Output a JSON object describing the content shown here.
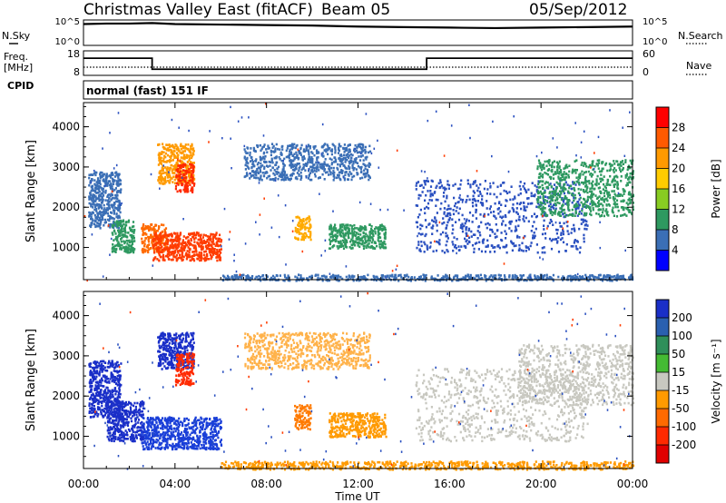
{
  "header": {
    "title": "Christmas Valley East (fitACF)",
    "beam": "Beam 05",
    "date": "05/Sep/2012"
  },
  "left_labels": {
    "nsky": "N.Sky",
    "freq_line1": "Freq.",
    "freq_line2": "[MHz]",
    "cpid": "CPID"
  },
  "right_labels": {
    "nsearch": "N.Search",
    "nave": "Nave"
  },
  "cpid_text": "normal (fast) 151 IF",
  "chart_data": [
    {
      "type": "line",
      "name": "noise-panel",
      "left_ticks": [
        "10^5",
        "10^0"
      ],
      "right_ticks": [
        "10^5",
        "10^0"
      ],
      "series": [
        {
          "name": "N.Sky",
          "x": [
            0,
            1,
            2,
            3,
            4,
            6,
            8,
            10,
            12,
            14,
            16,
            18,
            20,
            22,
            24
          ],
          "values": [
            4.2,
            4.3,
            4.3,
            4.4,
            4.2,
            4.1,
            4.0,
            3.9,
            3.7,
            3.6,
            3.5,
            3.4,
            3.5,
            3.6,
            3.7
          ]
        }
      ]
    },
    {
      "type": "line",
      "name": "frequency-panel",
      "left_ticks": [
        "18",
        "8"
      ],
      "right_ticks": [
        "60",
        "0"
      ],
      "series": [
        {
          "name": "Freq",
          "x": [
            0,
            3,
            3,
            15,
            15,
            24
          ],
          "values": [
            15,
            15,
            10.5,
            10.5,
            15,
            15
          ]
        },
        {
          "name": "Nave",
          "x": [
            0,
            24
          ],
          "values": [
            20,
            20
          ]
        }
      ]
    },
    {
      "type": "heatmap",
      "name": "power-panel",
      "ylabel": "Slant Range [km]",
      "x_ticks": [
        "00:00",
        "04:00",
        "08:00",
        "12:00",
        "16:00",
        "20:00",
        "00:00"
      ],
      "y_ticks": [
        "1000",
        "2000",
        "3000",
        "4000"
      ],
      "xlim": [
        0,
        24
      ],
      "ylim": [
        200,
        4600
      ],
      "colorbar": {
        "label": "Power [dB]",
        "ticks": [
          "28",
          "24",
          "20",
          "16",
          "12",
          "8",
          "4"
        ],
        "colors": [
          "#ff0000",
          "#ff5a00",
          "#ff9a00",
          "#ffcc00",
          "#88cc22",
          "#2e9960",
          "#3b6fb6",
          "#0000ff"
        ]
      },
      "echo_regions": [
        {
          "x": [
            0.2,
            1.6
          ],
          "y": [
            1500,
            2900
          ],
          "color": "#3b6fb6"
        },
        {
          "x": [
            1.2,
            2.2
          ],
          "y": [
            900,
            1700
          ],
          "color": "#2e9960"
        },
        {
          "x": [
            2.5,
            3.6
          ],
          "y": [
            900,
            1600
          ],
          "color": "#ff6a00"
        },
        {
          "x": [
            3.0,
            6.0
          ],
          "y": [
            700,
            1400
          ],
          "color": "#ff3c00"
        },
        {
          "x": [
            3.2,
            4.8
          ],
          "y": [
            2600,
            3600
          ],
          "color": "#ff9a00"
        },
        {
          "x": [
            4.0,
            4.8
          ],
          "y": [
            2400,
            3100
          ],
          "color": "#ff2a00"
        },
        {
          "x": [
            7.0,
            12.5
          ],
          "y": [
            2700,
            3600
          ],
          "color": "#3b6fb6"
        },
        {
          "x": [
            9.2,
            9.9
          ],
          "y": [
            1200,
            1800
          ],
          "color": "#ffaa00"
        },
        {
          "x": [
            10.7,
            13.2
          ],
          "y": [
            1000,
            1600
          ],
          "color": "#2e9960"
        },
        {
          "x": [
            14.5,
            22.0
          ],
          "y": [
            900,
            2700
          ],
          "color": "#2a50c0"
        },
        {
          "x": [
            19.8,
            24.0
          ],
          "y": [
            1800,
            3200
          ],
          "color": "#2e9960"
        },
        {
          "x": [
            6.0,
            24.0
          ],
          "y": [
            200,
            350
          ],
          "color": "#3b6fb6"
        }
      ]
    },
    {
      "type": "heatmap",
      "name": "velocity-panel",
      "ylabel": "Slant Range [km]",
      "xlabel": "Time UT",
      "x_ticks": [
        "00:00",
        "04:00",
        "08:00",
        "12:00",
        "16:00",
        "20:00",
        "00:00"
      ],
      "y_ticks": [
        "1000",
        "2000",
        "3000",
        "4000"
      ],
      "xlim": [
        0,
        24
      ],
      "ylim": [
        200,
        4600
      ],
      "colorbar": {
        "label": "Velocity [m s⁻¹]",
        "ticks": [
          "200",
          "100",
          "50",
          "15",
          "-15",
          "-50",
          "-100",
          "-200"
        ],
        "colors": [
          "#1a2fc8",
          "#2a60b0",
          "#2f8f5a",
          "#44bb33",
          "#c8c8c0",
          "#ff9a00",
          "#ff6a00",
          "#ff2a00",
          "#e00000"
        ]
      },
      "echo_regions": [
        {
          "x": [
            0.2,
            1.6
          ],
          "y": [
            1500,
            2900
          ],
          "color": "#1a2fc8"
        },
        {
          "x": [
            1.0,
            2.6
          ],
          "y": [
            900,
            1900
          ],
          "color": "#1a2fc8"
        },
        {
          "x": [
            2.5,
            6.0
          ],
          "y": [
            700,
            1500
          ],
          "color": "#1a3fd8"
        },
        {
          "x": [
            3.2,
            4.8
          ],
          "y": [
            2700,
            3600
          ],
          "color": "#1a2fc8"
        },
        {
          "x": [
            4.0,
            4.8
          ],
          "y": [
            2300,
            3100
          ],
          "color": "#ff2a00"
        },
        {
          "x": [
            7.0,
            12.5
          ],
          "y": [
            2700,
            3600
          ],
          "color": "#ffb24a"
        },
        {
          "x": [
            9.2,
            9.9
          ],
          "y": [
            1200,
            1800
          ],
          "color": "#ff7a00"
        },
        {
          "x": [
            10.7,
            13.2
          ],
          "y": [
            1000,
            1600
          ],
          "color": "#ff9a00"
        },
        {
          "x": [
            14.5,
            22.0
          ],
          "y": [
            900,
            2700
          ],
          "color": "#c8c8c0"
        },
        {
          "x": [
            19.0,
            24.0
          ],
          "y": [
            1800,
            3300
          ],
          "color": "#c8c8c0"
        },
        {
          "x": [
            6.0,
            24.0
          ],
          "y": [
            200,
            400
          ],
          "color": "#ff9a00"
        }
      ]
    }
  ]
}
